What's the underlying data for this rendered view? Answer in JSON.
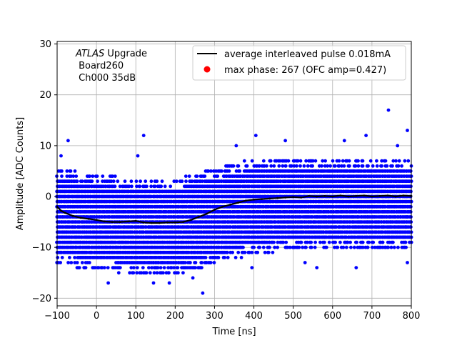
{
  "chart_data": {
    "type": "scatter",
    "title": "",
    "xlabel": "Time [ns]",
    "ylabel": "Amplitude [ADC Counts]",
    "xlim": [
      -100,
      800
    ],
    "ylim": [
      -21.5,
      30.5
    ],
    "xticks": [
      -100,
      0,
      100,
      200,
      300,
      400,
      500,
      600,
      700,
      800
    ],
    "yticks": [
      -20,
      -10,
      0,
      10,
      20,
      30
    ],
    "grid": true,
    "legend_position": "top-right",
    "annotation": {
      "experiment": "ATLAS",
      "experiment_suffix": " Upgrade",
      "board": " Board260",
      "channel": " Ch000 35dB"
    },
    "legend": [
      {
        "label": "average interleaved pulse 0.018mA",
        "color": "#000000",
        "marker": "line"
      },
      {
        "label": "max phase: 267 (OFC amp=0.427)",
        "color": "#ff0000",
        "marker": "dot"
      }
    ],
    "scatter_series": {
      "color": "#0000ff",
      "envelope": [
        {
          "x": -100,
          "y_min": -13,
          "y_max": 5
        },
        {
          "x": 0,
          "y_min": -14,
          "y_max": 4
        },
        {
          "x": 100,
          "y_min": -15,
          "y_max": 3
        },
        {
          "x": 200,
          "y_min": -15,
          "y_max": 3
        },
        {
          "x": 300,
          "y_min": -13,
          "y_max": 5
        },
        {
          "x": 400,
          "y_min": -11,
          "y_max": 7
        },
        {
          "x": 500,
          "y_min": -10,
          "y_max": 7
        },
        {
          "x": 600,
          "y_min": -10,
          "y_max": 7
        },
        {
          "x": 700,
          "y_min": -10,
          "y_max": 7
        },
        {
          "x": 800,
          "y_min": -10,
          "y_max": 7
        }
      ],
      "outliers": [
        {
          "x": -72,
          "y": 11
        },
        {
          "x": -90,
          "y": 8
        },
        {
          "x": 120,
          "y": 12
        },
        {
          "x": 105,
          "y": 8
        },
        {
          "x": 145,
          "y": -17
        },
        {
          "x": 30,
          "y": -17
        },
        {
          "x": 185,
          "y": -17
        },
        {
          "x": 270,
          "y": -19
        },
        {
          "x": 245,
          "y": -16
        },
        {
          "x": 395,
          "y": -14
        },
        {
          "x": 405,
          "y": 12
        },
        {
          "x": 480,
          "y": 11
        },
        {
          "x": 560,
          "y": -14
        },
        {
          "x": 660,
          "y": -14
        },
        {
          "x": 685,
          "y": 12
        },
        {
          "x": 742,
          "y": 17
        },
        {
          "x": 790,
          "y": 13
        },
        {
          "x": 765,
          "y": 10
        },
        {
          "x": 530,
          "y": -13
        },
        {
          "x": 790,
          "y": -13
        },
        {
          "x": 355,
          "y": 10
        },
        {
          "x": 630,
          "y": 11
        }
      ]
    },
    "average_pulse": {
      "name": "average interleaved pulse 0.018mA",
      "color": "#000000",
      "x": [
        -100,
        -90,
        -80,
        -60,
        -40,
        -20,
        0,
        20,
        40,
        60,
        80,
        100,
        120,
        140,
        160,
        180,
        200,
        220,
        240,
        260,
        280,
        300,
        320,
        340,
        360,
        380,
        400,
        420,
        440,
        460,
        480,
        500,
        520,
        540,
        560,
        580,
        600,
        620,
        640,
        660,
        680,
        700,
        720,
        740,
        760,
        780,
        800
      ],
      "y": [
        -2.0,
        -2.8,
        -3.2,
        -3.8,
        -4.2,
        -4.4,
        -4.6,
        -4.9,
        -5.0,
        -5.0,
        -4.9,
        -4.8,
        -5.1,
        -5.2,
        -5.2,
        -5.1,
        -5.1,
        -5.0,
        -4.6,
        -4.0,
        -3.4,
        -2.6,
        -2.0,
        -1.6,
        -1.2,
        -0.8,
        -0.6,
        -0.5,
        -0.4,
        -0.3,
        -0.2,
        -0.1,
        -0.2,
        0.1,
        0.0,
        0.1,
        0.0,
        0.2,
        0.0,
        0.1,
        0.2,
        0.0,
        0.1,
        0.2,
        0.0,
        0.2,
        0.1
      ]
    }
  }
}
